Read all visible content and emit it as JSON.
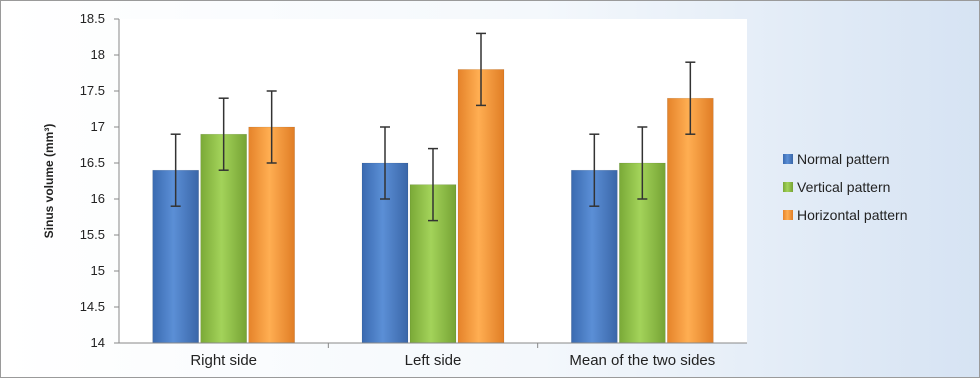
{
  "chart_data": {
    "type": "bar",
    "categories": [
      "Right side",
      "Left side",
      "Mean of the two sides"
    ],
    "series": [
      {
        "name": "Normal pattern",
        "values": [
          16.4,
          16.5,
          16.4
        ],
        "errors": [
          0.5,
          0.5,
          0.5
        ],
        "color": "#4a7cc3"
      },
      {
        "name": "Vertical pattern",
        "values": [
          16.9,
          16.2,
          16.5
        ],
        "errors": [
          0.5,
          0.5,
          0.5
        ],
        "color": "#8fbf45"
      },
      {
        "name": "Horizontal pattern",
        "values": [
          17.0,
          17.8,
          17.4
        ],
        "errors": [
          0.5,
          0.5,
          0.5
        ],
        "color": "#f59a3a"
      }
    ],
    "ylabel": "Sinus volume (mm³)",
    "xlabel": "",
    "title": "",
    "ylim": [
      14,
      18.5
    ],
    "yticks": [
      "14",
      "14.5",
      "15",
      "15.5",
      "16",
      "16.5",
      "17",
      "17.5",
      "18",
      "18.5"
    ],
    "grid": false,
    "legend_position": "right"
  }
}
